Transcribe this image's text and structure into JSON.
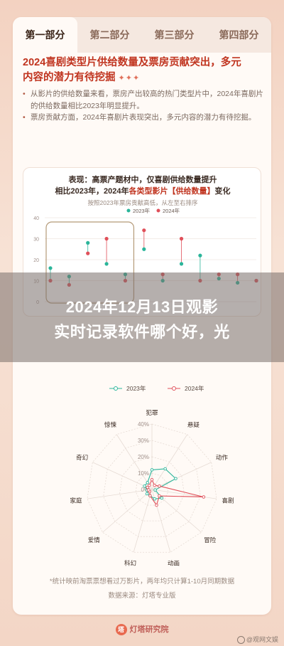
{
  "tabs": [
    "第一部分",
    "第二部分",
    "第三部分",
    "第四部分"
  ],
  "heading": {
    "line1": "2024喜剧类型片供给数量及票房贡献突出，多元",
    "line2": "内容的潜力有待挖掘",
    "stars": "✦✦✦"
  },
  "bullets": [
    "从影片的供给数量来看，票房产出较高的热门类型片中，2024年喜剧片的供给数量相比2023年明显提升。",
    "票房贡献方面，2024年喜剧片表现突出，多元内容的潜力有待挖掘。"
  ],
  "chart1_header": {
    "title": "表现：高票产题材中，仅喜剧供给数量提升",
    "title2_a": "相比2023年，2024年",
    "title2_b": "各类型影片【供给数量】",
    "title2_c": "变化",
    "sub": "按照2023年票房贡献高低，从左至右排序"
  },
  "overlay_title_line1": "2024年12月13日观影",
  "overlay_title_line2": "实时记录软件哪个好，光",
  "footnote": {
    "line1": "*统计映前淘票票想看过万影片，两年均只计算1-10月同期数据",
    "line2": "数据来源：灯塔专业版"
  },
  "brand": {
    "logo": "塔",
    "name": "灯塔研究院"
  },
  "watermark": "@观网文娱",
  "colors": {
    "y2023": "#2bb59a",
    "y2024": "#e0505a",
    "accent": "#c0341f"
  },
  "chart_data": [
    {
      "type": "scatter",
      "title": "",
      "series": [
        {
          "name": "2023年",
          "values": [
            16,
            12,
            28,
            18,
            13,
            25,
            10,
            18,
            22,
            11,
            9,
            10
          ]
        },
        {
          "name": "2024年",
          "values": [
            10,
            8,
            23,
            30,
            10,
            34,
            13,
            30,
            10,
            13,
            13,
            10
          ]
        }
      ],
      "ylim": [
        0,
        40
      ],
      "yticks": [
        "40",
        "30",
        "20",
        "10",
        "0"
      ]
    },
    {
      "type": "radar",
      "title": "",
      "legend": [
        "2023年",
        "2024年"
      ],
      "categories": [
        "犯罪",
        "悬疑",
        "动作",
        "喜剧",
        "冒险",
        "动画",
        "科幻",
        "爱情",
        "家庭",
        "奇幻",
        "惊悚"
      ],
      "rings": [
        "40%",
        "30%",
        "20%",
        "10%",
        "0%"
      ],
      "series": [
        {
          "name": "2023年",
          "values": [
            12,
            15,
            16,
            2,
            8,
            6,
            4,
            4,
            3,
            5,
            5
          ]
        },
        {
          "name": "2024年",
          "values": [
            6,
            3,
            5,
            32,
            6,
            10,
            4,
            2,
            2,
            3,
            3
          ]
        }
      ]
    }
  ]
}
